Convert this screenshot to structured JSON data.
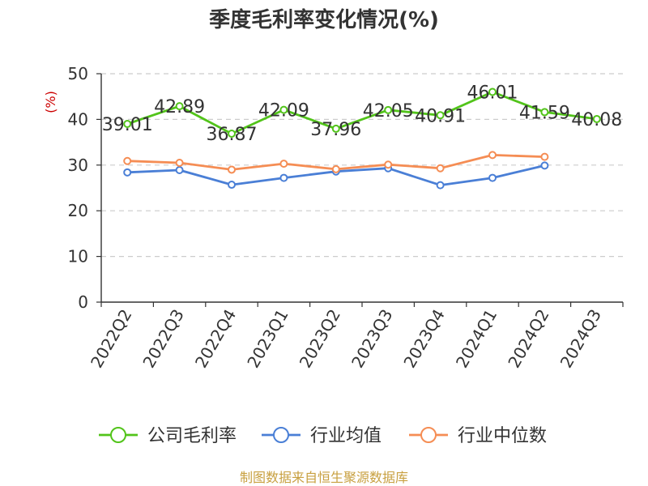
{
  "chart_data": {
    "type": "line",
    "title": "季度毛利率变化情况(%)",
    "ylabel": "(%)",
    "ylim": [
      0,
      50
    ],
    "yticks": [
      0,
      10,
      20,
      30,
      40,
      50
    ],
    "grid": true,
    "legend_position": "bottom",
    "categories": [
      "2022Q2",
      "2022Q3",
      "2022Q4",
      "2023Q1",
      "2023Q2",
      "2023Q3",
      "2023Q4",
      "2024Q1",
      "2024Q2",
      "2024Q3"
    ],
    "series": [
      {
        "name": "公司毛利率",
        "color": "#52c41a",
        "values": [
          39.01,
          42.89,
          36.87,
          42.09,
          37.96,
          42.05,
          40.91,
          46.01,
          41.59,
          40.08
        ],
        "labels": [
          "39.01",
          "42.89",
          "36.87",
          "42.09",
          "37.96",
          "42.05",
          "40.91",
          "46.01",
          "41.59",
          "40.08"
        ]
      },
      {
        "name": "行业均值",
        "color": "#4a7fd6",
        "values": [
          28.4,
          28.9,
          25.7,
          27.2,
          28.6,
          29.3,
          25.6,
          27.2,
          29.9,
          null
        ]
      },
      {
        "name": "行业中位数",
        "color": "#f58d54",
        "values": [
          30.9,
          30.5,
          29.0,
          30.3,
          29.1,
          30.1,
          29.3,
          32.2,
          31.8,
          null
        ]
      }
    ],
    "source": "制图数据来自恒生聚源数据库"
  }
}
